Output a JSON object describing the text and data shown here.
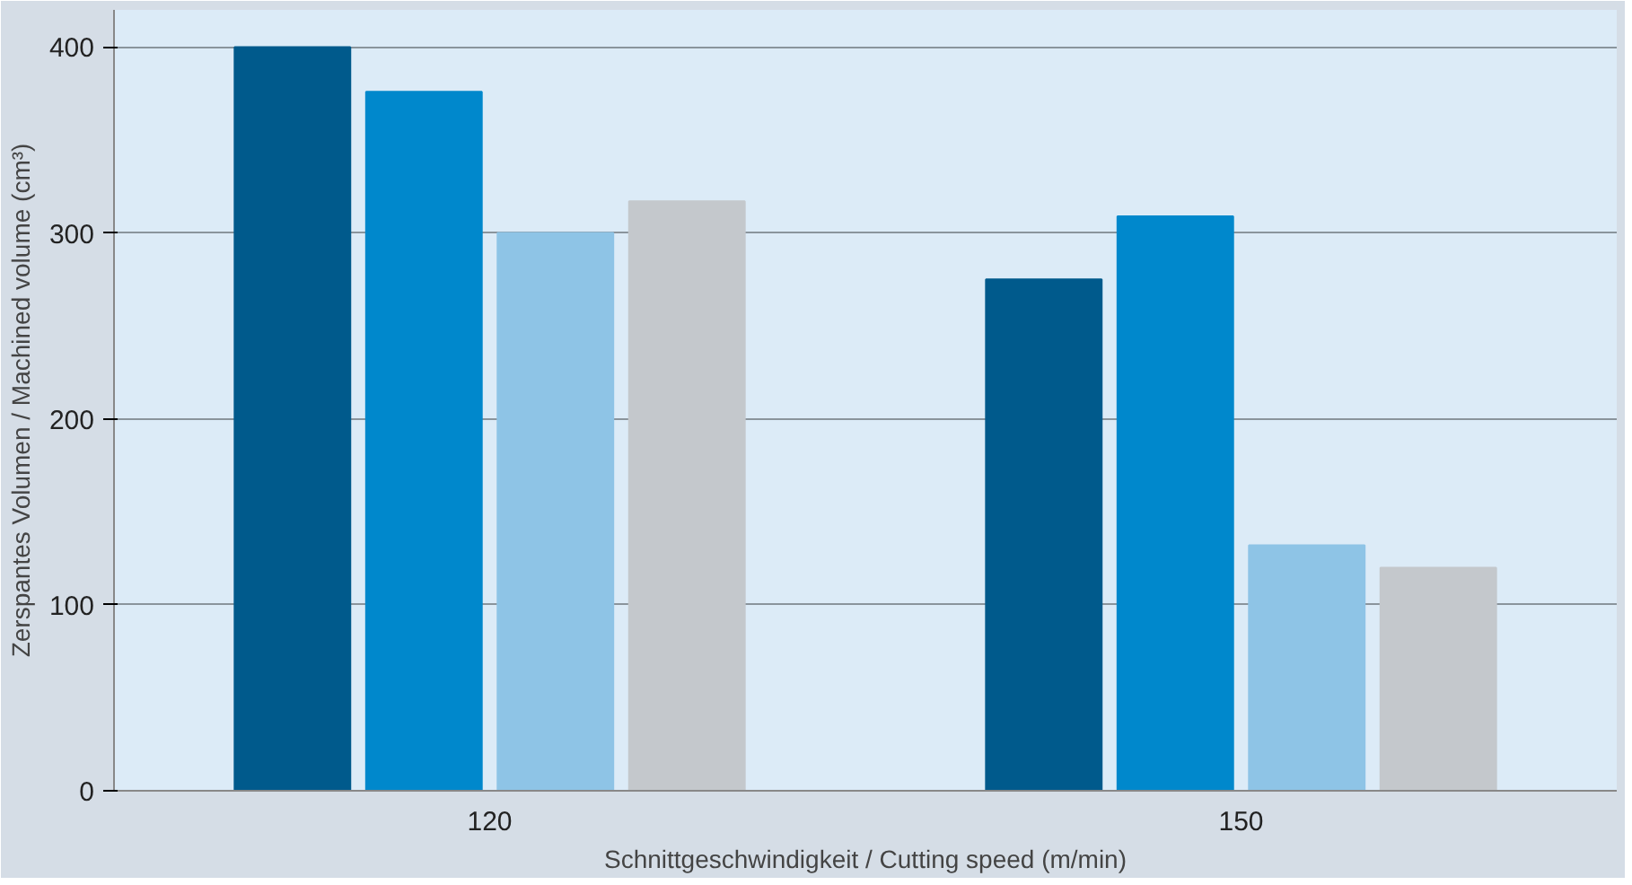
{
  "chart_data": {
    "type": "bar",
    "xlabel": "Schnittgeschwindigkeit / Cutting speed (m/min)",
    "ylabel": "Zerspantes Volumen / Machined volume (cm³)",
    "categories": [
      "120",
      "150"
    ],
    "series": [
      {
        "color": "#005a8c",
        "values": [
          400,
          275
        ]
      },
      {
        "color": "#0088cc",
        "values": [
          376,
          309
        ]
      },
      {
        "color": "#8ec4e6",
        "values": [
          300,
          132
        ]
      },
      {
        "color": "#c4c8cc",
        "values": [
          317,
          120
        ]
      }
    ],
    "ylim": [
      0,
      420
    ],
    "yticks": [
      0,
      100,
      200,
      300,
      400
    ],
    "grid": "y"
  }
}
